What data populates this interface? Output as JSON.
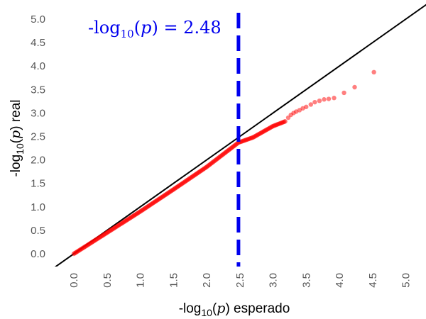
{
  "chart_data": {
    "type": "scatter",
    "title": "",
    "xlabel": "-log10(p) esperado",
    "ylabel": "-log10(p) real",
    "xlabel_parts": {
      "pre": "-log",
      "sub": "10",
      "mid": "(",
      "var": "p",
      "post": ") esperado"
    },
    "ylabel_parts": {
      "pre": "-log",
      "sub": "10",
      "mid": "(",
      "var": "p",
      "post": ") real"
    },
    "xlim": [
      -0.3,
      5.2
    ],
    "ylim": [
      -0.25,
      5.2
    ],
    "xticks": [
      0.0,
      0.5,
      1.0,
      1.5,
      2.0,
      2.5,
      3.0,
      3.5,
      4.0,
      4.5,
      5.0
    ],
    "xtick_labels": [
      "0.0",
      "0.5",
      "1.0",
      "1.5",
      "2.0",
      "2.5",
      "3.0",
      "3.5",
      "4.0",
      "4.5",
      "5.0"
    ],
    "yticks": [
      0.0,
      0.5,
      1.0,
      1.5,
      2.0,
      2.5,
      3.0,
      3.5,
      4.0,
      4.5,
      5.0
    ],
    "ytick_labels": [
      "0.0",
      "0.5",
      "1.0",
      "1.5",
      "2.0",
      "2.5",
      "3.0",
      "3.5",
      "4.0",
      "4.5",
      "5.0"
    ],
    "grid": false,
    "reference_line": {
      "slope": 1,
      "intercept": 0,
      "color": "#000000"
    },
    "threshold": {
      "x": 2.48,
      "label_parts": {
        "pre": "-log",
        "sub": "10",
        "mid": "(",
        "var": "p",
        "post": ") = 2.48"
      },
      "color": "#0000ee"
    },
    "series": [
      {
        "color": "#ff0000",
        "dense_segments": [
          {
            "x": [
              0.0,
              0.5,
              1.0,
              1.5,
              2.0,
              2.48,
              2.7,
              3.0,
              3.2
            ],
            "y": [
              0.0,
              0.45,
              0.9,
              1.37,
              1.85,
              2.37,
              2.48,
              2.72,
              2.83
            ]
          }
        ],
        "points": [
          {
            "x": 3.23,
            "y": 2.9
          },
          {
            "x": 3.27,
            "y": 2.96
          },
          {
            "x": 3.31,
            "y": 3.0
          },
          {
            "x": 3.35,
            "y": 3.03
          },
          {
            "x": 3.4,
            "y": 3.06
          },
          {
            "x": 3.45,
            "y": 3.1
          },
          {
            "x": 3.5,
            "y": 3.13
          },
          {
            "x": 3.57,
            "y": 3.18
          },
          {
            "x": 3.63,
            "y": 3.23
          },
          {
            "x": 3.7,
            "y": 3.26
          },
          {
            "x": 3.77,
            "y": 3.29
          },
          {
            "x": 3.84,
            "y": 3.3
          },
          {
            "x": 3.92,
            "y": 3.32
          },
          {
            "x": 4.07,
            "y": 3.43
          },
          {
            "x": 4.23,
            "y": 3.55
          },
          {
            "x": 4.52,
            "y": 3.87
          }
        ]
      }
    ]
  }
}
